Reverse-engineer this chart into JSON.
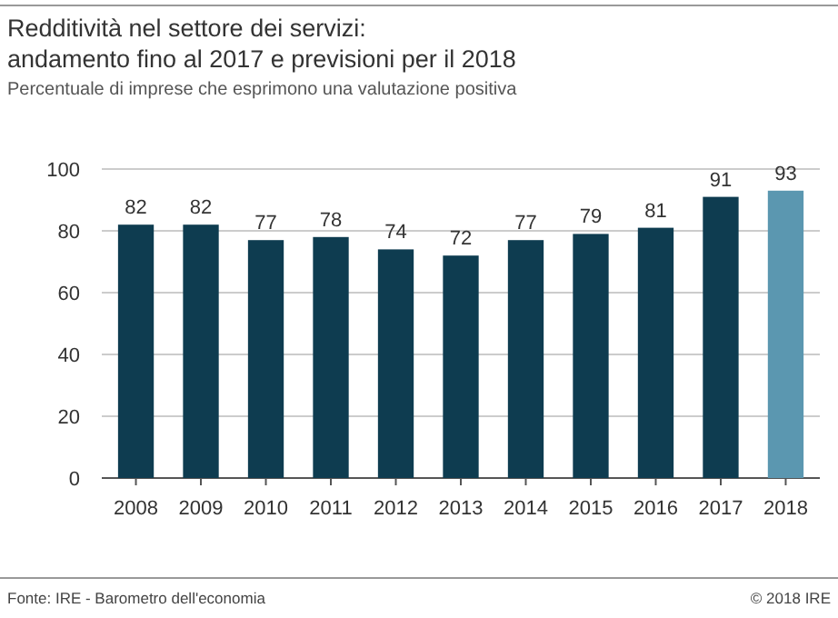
{
  "chart_data": {
    "type": "bar",
    "title": "Redditività nel settore dei servizi:\nandamento fino al 2017 e previsioni per il 2018",
    "subtitle": "Percentuale di imprese che esprimono una valutazione positiva",
    "categories": [
      "2008",
      "2009",
      "2010",
      "2011",
      "2012",
      "2013",
      "2014",
      "2015",
      "2016",
      "2017",
      "2018"
    ],
    "values": [
      82,
      82,
      77,
      78,
      74,
      72,
      77,
      79,
      81,
      91,
      93
    ],
    "colors": [
      "#0e3c50",
      "#0e3c50",
      "#0e3c50",
      "#0e3c50",
      "#0e3c50",
      "#0e3c50",
      "#0e3c50",
      "#0e3c50",
      "#0e3c50",
      "#0e3c50",
      "#5b97b0"
    ],
    "ylim": [
      0,
      100
    ],
    "yticks": [
      0,
      20,
      40,
      60,
      80,
      100
    ],
    "grid": "y",
    "data_labels": true,
    "annotations": [
      "Fonte: IRE - Barometro dell'economia",
      "© 2018 IRE"
    ]
  }
}
